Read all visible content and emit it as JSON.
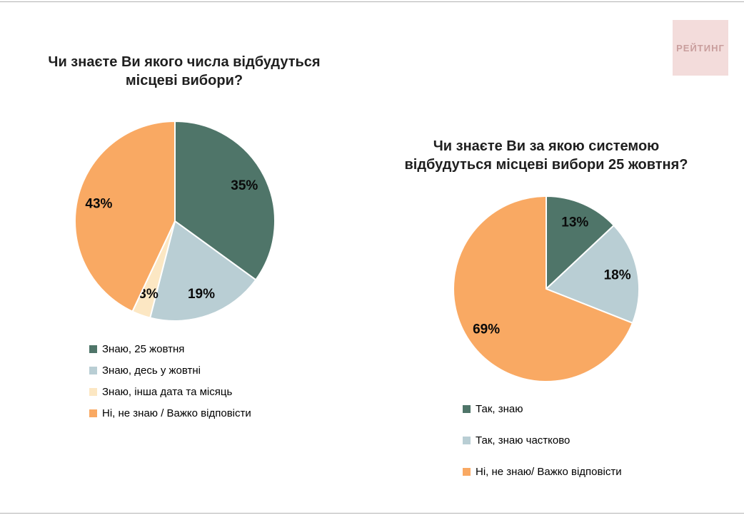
{
  "page": {
    "logo_text": "РЕЙТИНГ",
    "background": "#ffffff",
    "border_line_color": "#b3b3b3"
  },
  "logo": {
    "text": "РЕЙТИНГ",
    "bg_color": "#f3dcdb",
    "text_color": "#c99e9d"
  },
  "colors": {
    "teal": "#4f7569",
    "light_blue": "#b9ced4",
    "cream": "#fce7c3",
    "orange": "#f9a963"
  },
  "chart_data": [
    {
      "type": "pie",
      "title": "Чи знаєте Ви якого числа відбудуться місцеві вибори?",
      "title_lines": [
        "Чи знаєте Ви якого числа відбудуться",
        "місцеві вибори?"
      ],
      "labels": [
        "Знаю, 25 жовтня",
        "Знаю, десь у жовтні",
        "Знаю, інша дата та місяць",
        "Ні, не знаю / Важко відповісти"
      ],
      "values": [
        35,
        19,
        3,
        43
      ],
      "value_labels": [
        "35%",
        "19%",
        "3%",
        "43%"
      ],
      "colors": [
        "#4f7569",
        "#b9ced4",
        "#fce7c3",
        "#f9a963"
      ],
      "start_angle_deg": 0,
      "direction": "clockwise",
      "legend_position": "bottom-left"
    },
    {
      "type": "pie",
      "title": "Чи знаєте Ви за якою системою відбудуться місцеві вибори 25 жовтня?",
      "title_lines": [
        "Чи знаєте Ви за якою системою",
        "відбудуться місцеві вибори 25 жовтня?"
      ],
      "labels": [
        "Так, знаю",
        "Так, знаю частково",
        "Ні, не знаю/ Важко відповісти"
      ],
      "values": [
        13,
        18,
        69
      ],
      "value_labels": [
        "13%",
        "18%",
        "69%"
      ],
      "colors": [
        "#4f7569",
        "#b9ced4",
        "#f9a963"
      ],
      "start_angle_deg": 0,
      "direction": "clockwise",
      "legend_position": "bottom-left"
    }
  ]
}
